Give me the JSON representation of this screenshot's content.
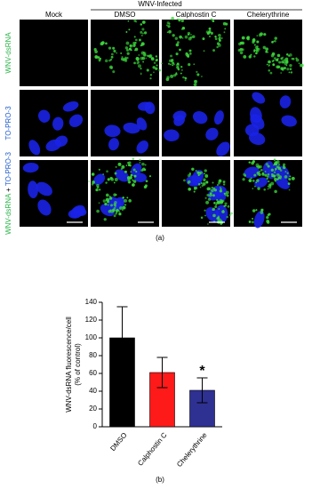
{
  "panel_a": {
    "header": "WNV-Infected",
    "columns": [
      "Mock",
      "DMSO",
      "Calphostin C",
      "Chelerythrine"
    ],
    "rows": [
      [
        "WNV-dsRNA"
      ],
      [
        "TO-PRO-3"
      ],
      [
        "WNV-dsRNA",
        "+",
        "TO-PRO-3"
      ]
    ],
    "caption": "(a)"
  },
  "chart_data": {
    "type": "bar",
    "categories": [
      "DMSO",
      "Calphostin C",
      "Chelerythrine"
    ],
    "values": [
      100,
      61,
      41
    ],
    "errors": [
      35,
      17,
      14
    ],
    "colors": [
      "#000000",
      "#ff1a1a",
      "#2e3192"
    ],
    "y_label": [
      "WNV-dsRNA fluorescence/cell",
      "(% of control)"
    ],
    "ylim": [
      0,
      140
    ],
    "yticks": [
      0,
      20,
      40,
      60,
      80,
      100,
      120,
      140
    ],
    "annotations": [
      {
        "category": 2,
        "text": "*"
      }
    ],
    "caption": "(b)"
  }
}
